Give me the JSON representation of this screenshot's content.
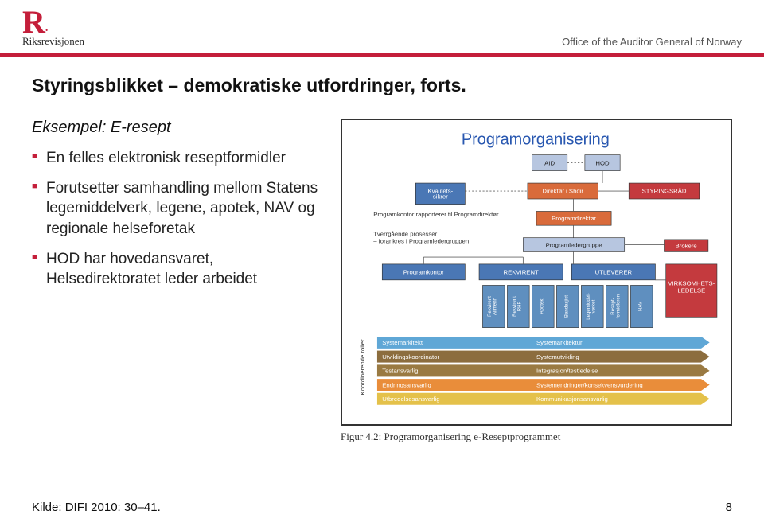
{
  "header": {
    "logo_letter": "R",
    "logo_dot": ".",
    "logo_name": "Riksrevisjonen",
    "office": "Office of the Auditor General of Norway",
    "bar_color": "#c41e3a"
  },
  "title": "Styringsblikket – demokratiske utfordringer, forts.",
  "example_heading": "Eksempel: E-resept",
  "bullets": [
    "En felles elektronisk reseptformidler",
    "Forutsetter samhandling mellom Statens legemiddelverk, legene, apotek, NAV og regionale helseforetak",
    "HOD har hovedansvaret, Helsedirektoratet leder arbeidet"
  ],
  "diagram": {
    "chart_title": "Programorganisering",
    "stroke_color": "#333333",
    "caption": "Figur 4.2: Programorganisering e-Reseptprogrammet",
    "top_boxes": [
      {
        "label": "AID",
        "fill": "#b7c6e0",
        "txt": "#333"
      },
      {
        "label": "HOD",
        "fill": "#b7c6e0",
        "txt": "#333"
      }
    ],
    "row2": [
      {
        "label": "Kvalitets-\nsikrer",
        "fill": "#4a77b5"
      },
      {
        "label": "Direktør i Shdir",
        "fill": "#d96b3b"
      },
      {
        "label": "STYRINGSRÅD",
        "fill": "#c43a3e"
      }
    ],
    "anno1": "Programkontor rapporterer til Programdirektør",
    "row3_box": {
      "label": "Programdirektør",
      "fill": "#d96b3b"
    },
    "anno2a": "Tverrgående prosesser",
    "anno2b": "– forankres i Programledergruppen",
    "row4_box": {
      "label": "Programledergruppe",
      "fill": "#b7c6e0",
      "txt": "#333"
    },
    "brokere": {
      "label": "Brokere",
      "fill": "#c43a3e"
    },
    "row5": [
      {
        "label": "Programkontor",
        "fill": "#4a77b5"
      },
      {
        "label": "REKVIRENT",
        "fill": "#4a77b5"
      },
      {
        "label": "UTLEVERER",
        "fill": "#4a77b5"
      }
    ],
    "virk_box": {
      "line1": "VIRKSOMHETS-",
      "line2": "LEDELSE",
      "fill": "#c43a3e"
    },
    "vboxes": [
      "Rekvirent\nAllmenn",
      "Rekvirent\nRHF",
      "Apotek",
      "Bandasjist",
      "Legemiddel-\nverket",
      "Resept-\nformidleren",
      "NAV"
    ],
    "vbox_fill": "#5f8fbf",
    "arrows": [
      {
        "left": "Systemarkitekt",
        "right": "Systemarkitektur",
        "color": "#5fa7d6"
      },
      {
        "left": "Utviklingskoordinator",
        "right": "Systemutvikling",
        "color": "#8c6d3e"
      },
      {
        "left": "Testansvarlig",
        "right": "Integrasjon/testledelse",
        "color": "#9a7a42"
      },
      {
        "left": "Endringsansvarlig",
        "right": "Systemendringer/konsekvensvurdering",
        "color": "#e98d3a"
      },
      {
        "left": "Utbredelsesansvarlig",
        "right": "Kommunikasjonsansvarlig",
        "color": "#e4c14a"
      }
    ],
    "side_label": "Koordinerende roller"
  },
  "source": "Kilde: DIFI 2010: 30–41.",
  "page_number": "8"
}
